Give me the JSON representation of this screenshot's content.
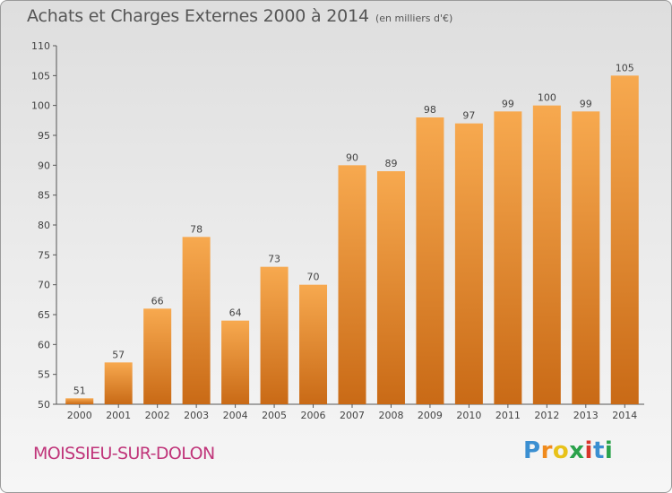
{
  "title": "Achats et Charges Externes 2000 à 2014",
  "subtitle": "(en milliers d'€)",
  "place": "MOISSIEU-SUR-DOLON",
  "brand": "Proxiti",
  "colors": {
    "bar_light": "#f7a94f",
    "bar_dark": "#c96a16",
    "text": "#555555",
    "place": "#c0357a"
  },
  "chart_data": {
    "type": "bar",
    "categories": [
      "2000",
      "2001",
      "2002",
      "2003",
      "2004",
      "2005",
      "2006",
      "2007",
      "2008",
      "2009",
      "2010",
      "2011",
      "2012",
      "2013",
      "2014"
    ],
    "values": [
      51,
      57,
      66,
      78,
      64,
      73,
      70,
      90,
      89,
      98,
      97,
      99,
      100,
      99,
      105
    ],
    "ylim": [
      50,
      110
    ],
    "yticks": [
      50,
      55,
      60,
      65,
      70,
      75,
      80,
      85,
      90,
      95,
      100,
      105,
      110
    ],
    "grid": "none",
    "legend": "none"
  }
}
